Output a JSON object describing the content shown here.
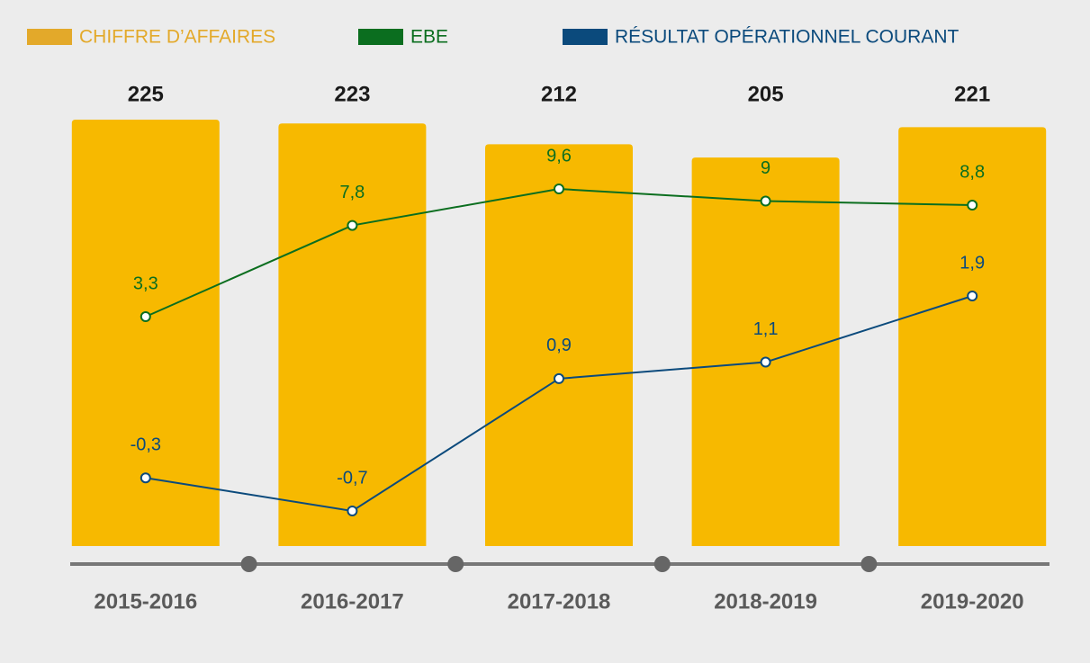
{
  "chart_data": {
    "type": "bar",
    "categories": [
      "2015-2016",
      "2016-2017",
      "2017-2018",
      "2018-2019",
      "2019-2020"
    ],
    "series": [
      {
        "name": "CHIFFRE D’AFFAIRES",
        "type": "bar",
        "color": "#f7b900",
        "legend_color": "#e3a92a",
        "values": [
          225,
          223,
          212,
          205,
          221
        ]
      },
      {
        "name": "EBE",
        "type": "line",
        "color": "#0b6e1f",
        "values": [
          3.3,
          7.8,
          9.6,
          9,
          8.8
        ],
        "value_labels": [
          "3,3",
          "7,8",
          "9,6",
          "9",
          "8,8"
        ]
      },
      {
        "name": "RÉSULTAT OPÉRATIONNEL COURANT",
        "type": "line",
        "color": "#0b4a7c",
        "values": [
          -0.3,
          -0.7,
          0.9,
          1.1,
          1.9
        ],
        "value_labels": [
          "-0,3",
          "-0,7",
          "0,9",
          "1,1",
          "1,9"
        ]
      }
    ]
  }
}
